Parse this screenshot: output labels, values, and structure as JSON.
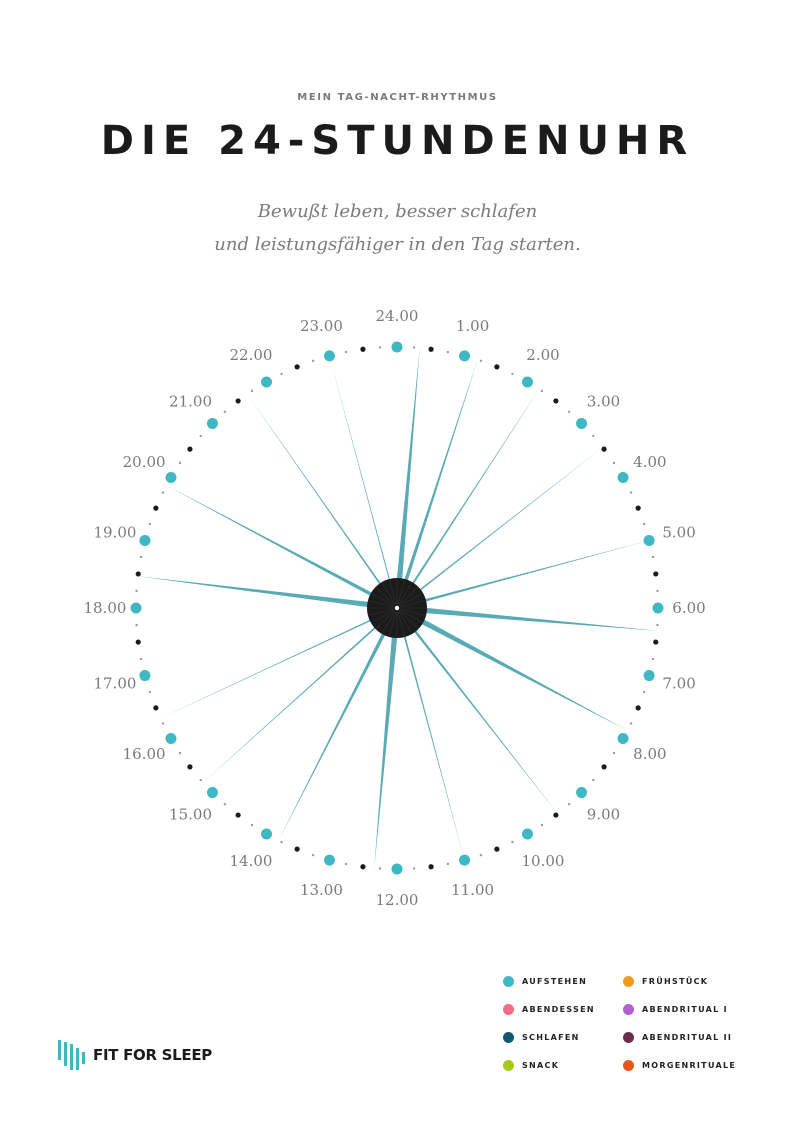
{
  "header": {
    "kicker": "MEIN TAG-NACHT-RHYTHMUS",
    "title": "DIE 24-STUNDENUHR",
    "subtitle_line1": "Bewußt leben, besser schlafen",
    "subtitle_line2": "und leistungsfähiger in den Tag starten."
  },
  "clock": {
    "hour_labels": [
      "24.00",
      "1.00",
      "2.00",
      "3.00",
      "4.00",
      "5.00",
      "6.00",
      "7.00",
      "8.00",
      "9.00",
      "10.00",
      "11.00",
      "12.00",
      "13.00",
      "14.00",
      "15.00",
      "16.00",
      "17.00",
      "18.00",
      "19.00",
      "20.00",
      "21.00",
      "22.00",
      "23.00"
    ]
  },
  "legend": [
    {
      "label": "AUFSTEHEN",
      "color": "#3fb8c4"
    },
    {
      "label": "FRÜHSTÜCK",
      "color": "#f39a1e"
    },
    {
      "label": "ABENDESSEN",
      "color": "#f06e84"
    },
    {
      "label": "ABENDRITUAL I",
      "color": "#b45fd0"
    },
    {
      "label": "SCHLAFEN",
      "color": "#0e5872"
    },
    {
      "label": "ABENDRITUAL II",
      "color": "#6b2d4e"
    },
    {
      "label": "SNACK",
      "color": "#a9c81a"
    },
    {
      "label": "MORGENRITUALE",
      "color": "#e4561e"
    }
  ],
  "brand": {
    "logo_text": "FIT FOR SLEEP",
    "colors": {
      "teal": "#3fb8c4",
      "ink": "#1b1b1b"
    }
  }
}
